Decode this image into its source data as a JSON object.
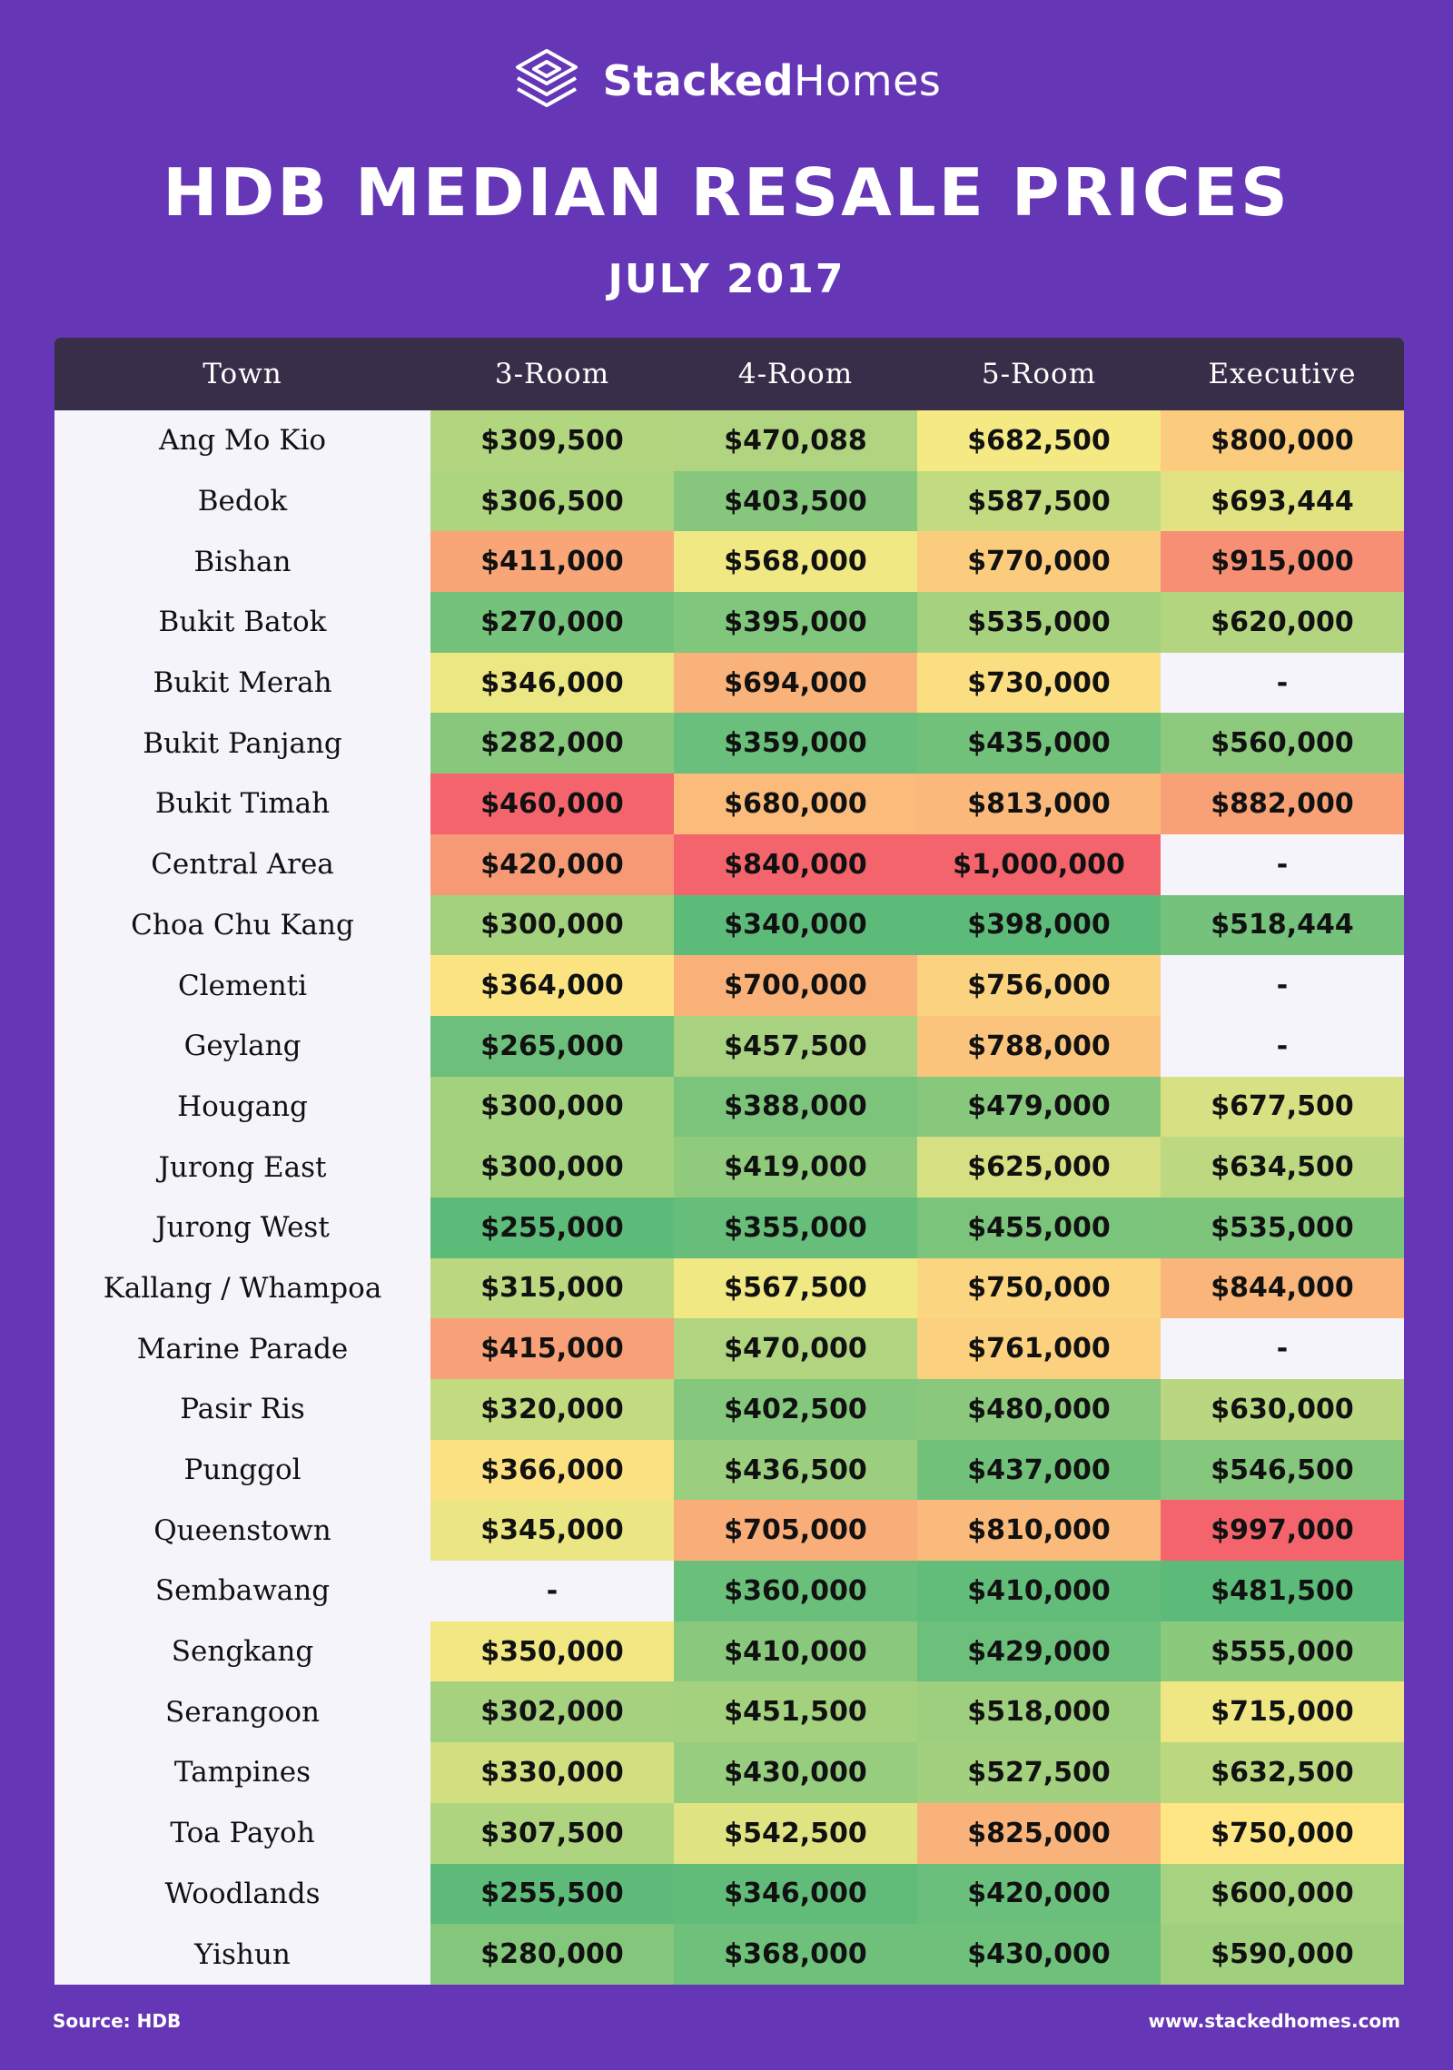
{
  "brand": {
    "name_bold": "Stacked",
    "name_light": "Homes",
    "logo_icon": "stacked-layers-icon"
  },
  "title": "HDB MEDIAN RESALE PRICES",
  "subtitle": "JULY 2017",
  "colors": {
    "background": "#6536b6",
    "header": "#392e49",
    "empty_cell": "#f5f4fa",
    "scale_low": "#5dbb7a",
    "scale_mid": "#fdec84",
    "scale_high": "#f4646c"
  },
  "footer": {
    "source": "Source: HDB",
    "website": "www.stackedhomes.com"
  },
  "chart_data": {
    "type": "table",
    "columns": [
      "Town",
      "3-Room",
      "4-Room",
      "5-Room",
      "Executive"
    ],
    "rows": [
      {
        "town": "Ang Mo Kio",
        "values": [
          "$309,500",
          "$470,088",
          "$682,500",
          "$800,000"
        ]
      },
      {
        "town": "Bedok",
        "values": [
          "$306,500",
          "$403,500",
          "$587,500",
          "$693,444"
        ]
      },
      {
        "town": "Bishan",
        "values": [
          "$411,000",
          "$568,000",
          "$770,000",
          "$915,000"
        ]
      },
      {
        "town": "Bukit Batok",
        "values": [
          "$270,000",
          "$395,000",
          "$535,000",
          "$620,000"
        ]
      },
      {
        "town": "Bukit Merah",
        "values": [
          "$346,000",
          "$694,000",
          "$730,000",
          "-"
        ]
      },
      {
        "town": "Bukit Panjang",
        "values": [
          "$282,000",
          "$359,000",
          "$435,000",
          "$560,000"
        ]
      },
      {
        "town": "Bukit Timah",
        "values": [
          "$460,000",
          "$680,000",
          "$813,000",
          "$882,000"
        ]
      },
      {
        "town": "Central Area",
        "values": [
          "$420,000",
          "$840,000",
          "$1,000,000",
          "-"
        ]
      },
      {
        "town": "Choa Chu Kang",
        "values": [
          "$300,000",
          "$340,000",
          "$398,000",
          "$518,444"
        ]
      },
      {
        "town": "Clementi",
        "values": [
          "$364,000",
          "$700,000",
          "$756,000",
          "-"
        ]
      },
      {
        "town": "Geylang",
        "values": [
          "$265,000",
          "$457,500",
          "$788,000",
          "-"
        ]
      },
      {
        "town": "Hougang",
        "values": [
          "$300,000",
          "$388,000",
          "$479,000",
          "$677,500"
        ]
      },
      {
        "town": "Jurong East",
        "values": [
          "$300,000",
          "$419,000",
          "$625,000",
          "$634,500"
        ]
      },
      {
        "town": "Jurong West",
        "values": [
          "$255,000",
          "$355,000",
          "$455,000",
          "$535,000"
        ]
      },
      {
        "town": "Kallang / Whampoa",
        "values": [
          "$315,000",
          "$567,500",
          "$750,000",
          "$844,000"
        ]
      },
      {
        "town": "Marine Parade",
        "values": [
          "$415,000",
          "$470,000",
          "$761,000",
          "-"
        ]
      },
      {
        "town": "Pasir Ris",
        "values": [
          "$320,000",
          "$402,500",
          "$480,000",
          "$630,000"
        ]
      },
      {
        "town": "Punggol",
        "values": [
          "$366,000",
          "$436,500",
          "$437,000",
          "$546,500"
        ]
      },
      {
        "town": "Queenstown",
        "values": [
          "$345,000",
          "$705,000",
          "$810,000",
          "$997,000"
        ]
      },
      {
        "town": "Sembawang",
        "values": [
          "-",
          "$360,000",
          "$410,000",
          "$481,500"
        ]
      },
      {
        "town": "Sengkang",
        "values": [
          "$350,000",
          "$410,000",
          "$429,000",
          "$555,000"
        ]
      },
      {
        "town": "Serangoon",
        "values": [
          "$302,000",
          "$451,500",
          "$518,000",
          "$715,000"
        ]
      },
      {
        "town": "Tampines",
        "values": [
          "$330,000",
          "$430,000",
          "$527,500",
          "$632,500"
        ]
      },
      {
        "town": "Toa Payoh",
        "values": [
          "$307,500",
          "$542,500",
          "$825,000",
          "$750,000"
        ]
      },
      {
        "town": "Woodlands",
        "values": [
          "$255,500",
          "$346,000",
          "$420,000",
          "$600,000"
        ]
      },
      {
        "town": "Yishun",
        "values": [
          "$280,000",
          "$368,000",
          "$430,000",
          "$590,000"
        ]
      }
    ]
  }
}
